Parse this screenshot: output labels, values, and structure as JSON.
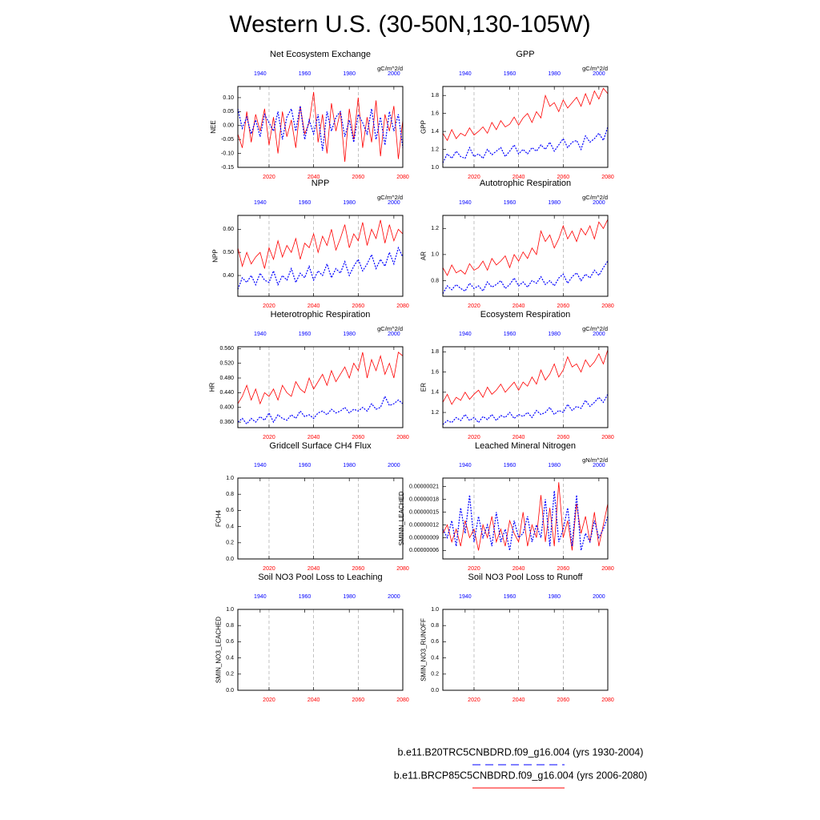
{
  "title": "Western U.S. (30-50N,130-105W)",
  "legend": [
    {
      "name": "b.e11.B20TRC5CNBDRD.f09_g16.004 (yrs 1930-2004)",
      "color": "#0000ff",
      "dash": true
    },
    {
      "name": "b.e11.BRCP85C5CNBDRD.f09_g16.004 (yrs 2006-2080)",
      "color": "#ff0000",
      "dash": false
    }
  ],
  "x": [
    2006,
    2008,
    2010,
    2012,
    2014,
    2016,
    2018,
    2020,
    2022,
    2024,
    2026,
    2028,
    2030,
    2032,
    2034,
    2036,
    2038,
    2040,
    2042,
    2044,
    2046,
    2048,
    2050,
    2052,
    2054,
    2056,
    2058,
    2060,
    2062,
    2064,
    2066,
    2068,
    2070,
    2072,
    2074,
    2076,
    2078,
    2080
  ],
  "x2": [
    1930,
    1932,
    1934,
    1936,
    1938,
    1940,
    1942,
    1944,
    1946,
    1948,
    1950,
    1952,
    1954,
    1956,
    1958,
    1960,
    1962,
    1964,
    1966,
    1968,
    1970,
    1972,
    1974,
    1976,
    1978,
    1980,
    1982,
    1984,
    1986,
    1988,
    1990,
    1992,
    1994,
    1996,
    1998,
    2000,
    2002,
    2004
  ],
  "xlim": [
    2006,
    2080
  ],
  "xticks": [
    2020,
    2040,
    2060,
    2080
  ],
  "x2lim": [
    1930,
    2004
  ],
  "x2ticks": [
    1940,
    1960,
    1980,
    2000
  ],
  "grid_x": true,
  "chart_data": [
    {
      "type": "line",
      "title": "Net Ecosystem Exchange",
      "units": "gC/m^2/d",
      "ylabel": "NEE",
      "ylim": [
        -0.15,
        0.14
      ],
      "yticks": [
        -0.15,
        {
          "value": -0.1,
          "label": "-0.10"
        },
        -0.05,
        {
          "value": 0,
          "label": "0.00"
        },
        0.05,
        {
          "value": 0.1,
          "label": "0.10"
        }
      ],
      "series": [
        {
          "color": "#ff0000",
          "values": [
            -0.03,
            -0.08,
            0.05,
            -0.06,
            0.04,
            -0.02,
            0.06,
            -0.07,
            0.03,
            -0.1,
            0.05,
            -0.04,
            0.02,
            -0.08,
            0.07,
            -0.03,
            0.01,
            0.12,
            -0.06,
            0.04,
            -0.1,
            0.08,
            -0.02,
            0.05,
            -0.13,
            0.06,
            -0.05,
            0.1,
            -0.08,
            0.03,
            -0.06,
            0.09,
            -0.11,
            0.04,
            -0.02,
            0.07,
            -0.12,
            0.02
          ]
        },
        {
          "color": "#0000ff",
          "dash": true,
          "axis": "x2",
          "values": [
            0.06,
            -0.01,
            0.03,
            -0.03,
            0.02,
            -0.04,
            0.04,
            0.01,
            -0.02,
            0.05,
            -0.05,
            0.03,
            0.06,
            -0.02,
            0.07,
            -0.05,
            0.02,
            -0.03,
            0.04,
            -0.09,
            0.05,
            -0.02,
            0.03,
            0.05,
            -0.04,
            0.02,
            -0.06,
            0.04,
            0.01,
            -0.03,
            0.06,
            -0.05,
            0.03,
            -0.07,
            0.05,
            -0.02,
            0.04,
            -0.08
          ]
        }
      ]
    },
    {
      "type": "line",
      "title": "GPP",
      "units": "gC/m^2/d",
      "ylabel": "GPP",
      "ylim": [
        1.0,
        1.9
      ],
      "yticks": [
        {
          "value": 1.0,
          "label": "1.0"
        },
        1.2,
        1.4,
        1.6,
        1.8
      ],
      "series": [
        {
          "color": "#ff0000",
          "values": [
            1.38,
            1.3,
            1.42,
            1.32,
            1.38,
            1.35,
            1.44,
            1.36,
            1.4,
            1.45,
            1.38,
            1.5,
            1.42,
            1.52,
            1.45,
            1.48,
            1.56,
            1.47,
            1.55,
            1.6,
            1.5,
            1.62,
            1.55,
            1.8,
            1.68,
            1.72,
            1.62,
            1.75,
            1.66,
            1.72,
            1.78,
            1.68,
            1.82,
            1.7,
            1.85,
            1.76,
            1.88,
            1.82
          ]
        },
        {
          "color": "#0000ff",
          "dash": true,
          "axis": "x2",
          "values": [
            1.05,
            1.15,
            1.1,
            1.18,
            1.12,
            1.1,
            1.22,
            1.12,
            1.15,
            1.1,
            1.2,
            1.14,
            1.18,
            1.22,
            1.12,
            1.18,
            1.25,
            1.15,
            1.2,
            1.15,
            1.22,
            1.18,
            1.25,
            1.2,
            1.28,
            1.18,
            1.25,
            1.32,
            1.22,
            1.28,
            1.3,
            1.2,
            1.35,
            1.28,
            1.32,
            1.38,
            1.3,
            1.45
          ]
        }
      ]
    },
    {
      "type": "line",
      "title": "NPP",
      "units": "gC/m^2/d",
      "ylabel": "NPP",
      "ylim": [
        0.31,
        0.66
      ],
      "yticks": [
        {
          "value": 0.4,
          "label": "0.40"
        },
        {
          "value": 0.5,
          "label": "0.50"
        },
        {
          "value": 0.6,
          "label": "0.60"
        }
      ],
      "series": [
        {
          "color": "#ff0000",
          "values": [
            0.52,
            0.44,
            0.5,
            0.45,
            0.48,
            0.5,
            0.43,
            0.52,
            0.47,
            0.55,
            0.48,
            0.53,
            0.5,
            0.56,
            0.47,
            0.54,
            0.52,
            0.58,
            0.5,
            0.57,
            0.53,
            0.6,
            0.51,
            0.56,
            0.62,
            0.52,
            0.58,
            0.55,
            0.63,
            0.53,
            0.6,
            0.56,
            0.64,
            0.54,
            0.62,
            0.55,
            0.6,
            0.58
          ]
        },
        {
          "color": "#0000ff",
          "dash": true,
          "axis": "x2",
          "values": [
            0.34,
            0.39,
            0.37,
            0.4,
            0.36,
            0.41,
            0.38,
            0.37,
            0.42,
            0.36,
            0.4,
            0.38,
            0.43,
            0.37,
            0.41,
            0.39,
            0.44,
            0.38,
            0.42,
            0.4,
            0.45,
            0.39,
            0.43,
            0.41,
            0.46,
            0.4,
            0.44,
            0.47,
            0.42,
            0.45,
            0.49,
            0.43,
            0.47,
            0.44,
            0.5,
            0.45,
            0.52,
            0.48
          ]
        }
      ]
    },
    {
      "type": "line",
      "title": "Autotrophic Respiration",
      "units": "gC/m^2/d",
      "ylabel": "AR",
      "ylim": [
        0.68,
        1.3
      ],
      "yticks": [
        0.8,
        {
          "value": 1.0,
          "label": "1.0"
        },
        1.2
      ],
      "series": [
        {
          "color": "#ff0000",
          "values": [
            0.9,
            0.84,
            0.92,
            0.86,
            0.88,
            0.85,
            0.93,
            0.88,
            0.9,
            0.95,
            0.88,
            0.97,
            0.92,
            0.95,
            0.99,
            0.9,
            1.0,
            0.95,
            1.02,
            0.97,
            1.05,
            1.0,
            1.18,
            1.1,
            1.15,
            1.05,
            1.12,
            1.22,
            1.12,
            1.18,
            1.1,
            1.2,
            1.15,
            1.22,
            1.12,
            1.25,
            1.2,
            1.27
          ]
        },
        {
          "color": "#0000ff",
          "dash": true,
          "axis": "x2",
          "values": [
            0.7,
            0.76,
            0.73,
            0.77,
            0.74,
            0.72,
            0.78,
            0.74,
            0.76,
            0.72,
            0.79,
            0.75,
            0.77,
            0.8,
            0.74,
            0.77,
            0.82,
            0.76,
            0.79,
            0.75,
            0.8,
            0.78,
            0.83,
            0.77,
            0.8,
            0.76,
            0.82,
            0.85,
            0.78,
            0.83,
            0.86,
            0.8,
            0.85,
            0.82,
            0.88,
            0.84,
            0.9,
            0.95
          ]
        }
      ]
    },
    {
      "type": "line",
      "title": "Heterotrophic Respiration",
      "units": "gC/m^2/d",
      "ylabel": "HR",
      "ylim": [
        0.345,
        0.565
      ],
      "yticks": [
        {
          "value": 0.36,
          "label": "0.360"
        },
        {
          "value": 0.4,
          "label": "0.400"
        },
        {
          "value": 0.44,
          "label": "0.440"
        },
        {
          "value": 0.48,
          "label": "0.480"
        },
        {
          "value": 0.52,
          "label": "0.520"
        },
        {
          "value": 0.56,
          "label": "0.560"
        }
      ],
      "series": [
        {
          "color": "#ff0000",
          "values": [
            0.41,
            0.43,
            0.46,
            0.42,
            0.45,
            0.41,
            0.44,
            0.43,
            0.45,
            0.42,
            0.46,
            0.44,
            0.43,
            0.47,
            0.45,
            0.44,
            0.48,
            0.45,
            0.47,
            0.49,
            0.46,
            0.5,
            0.47,
            0.49,
            0.51,
            0.48,
            0.52,
            0.5,
            0.55,
            0.48,
            0.53,
            0.5,
            0.54,
            0.49,
            0.52,
            0.48,
            0.55,
            0.54
          ]
        },
        {
          "color": "#0000ff",
          "dash": true,
          "axis": "x2",
          "values": [
            0.36,
            0.37,
            0.355,
            0.37,
            0.36,
            0.375,
            0.365,
            0.385,
            0.36,
            0.38,
            0.37,
            0.365,
            0.38,
            0.37,
            0.39,
            0.375,
            0.38,
            0.37,
            0.385,
            0.39,
            0.38,
            0.395,
            0.385,
            0.39,
            0.4,
            0.385,
            0.395,
            0.39,
            0.4,
            0.39,
            0.41,
            0.395,
            0.4,
            0.43,
            0.405,
            0.41,
            0.42,
            0.41
          ]
        }
      ]
    },
    {
      "type": "line",
      "title": "Ecosystem Respiration",
      "units": "gC/m^2/d",
      "ylabel": "ER",
      "ylim": [
        1.05,
        1.85
      ],
      "yticks": [
        1.2,
        1.4,
        1.6,
        1.8
      ],
      "series": [
        {
          "color": "#ff0000",
          "values": [
            1.3,
            1.38,
            1.28,
            1.35,
            1.32,
            1.4,
            1.33,
            1.38,
            1.42,
            1.35,
            1.45,
            1.38,
            1.42,
            1.48,
            1.4,
            1.45,
            1.5,
            1.42,
            1.5,
            1.46,
            1.55,
            1.48,
            1.62,
            1.52,
            1.58,
            1.68,
            1.55,
            1.62,
            1.75,
            1.65,
            1.68,
            1.6,
            1.72,
            1.65,
            1.7,
            1.78,
            1.68,
            1.82
          ]
        },
        {
          "color": "#0000ff",
          "dash": true,
          "axis": "x2",
          "values": [
            1.08,
            1.12,
            1.1,
            1.15,
            1.12,
            1.18,
            1.12,
            1.15,
            1.1,
            1.16,
            1.13,
            1.18,
            1.12,
            1.17,
            1.15,
            1.2,
            1.14,
            1.18,
            1.16,
            1.2,
            1.15,
            1.22,
            1.18,
            1.2,
            1.25,
            1.18,
            1.22,
            1.2,
            1.28,
            1.22,
            1.26,
            1.24,
            1.32,
            1.26,
            1.3,
            1.35,
            1.3,
            1.38
          ]
        }
      ]
    },
    {
      "type": "line",
      "title": "Gridcell Surface CH4 Flux",
      "ylabel": "FCH4",
      "ylim": [
        0,
        1
      ],
      "yticks": [
        {
          "value": 0,
          "label": "0.0"
        },
        0.2,
        0.4,
        0.6,
        0.8,
        {
          "value": 1,
          "label": "1.0"
        }
      ],
      "series": []
    },
    {
      "type": "line",
      "title": "Leached Mineral Nitrogen",
      "units": "gN/m^2/d",
      "ylabel": "SMINN_LEACHED",
      "ylim": [
        4e-08,
        2.3e-07
      ],
      "yticks": [
        {
          "value": 6e-08,
          "label": "0.00000006"
        },
        {
          "value": 9e-08,
          "label": "0.00000009"
        },
        {
          "value": 1.2e-07,
          "label": "0.00000012"
        },
        {
          "value": 1.5e-07,
          "label": "0.00000015"
        },
        {
          "value": 1.8e-07,
          "label": "0.00000018"
        },
        {
          "value": 2.1e-07,
          "label": "0.00000021"
        }
      ],
      "series": [
        {
          "color": "#ff0000",
          "values": [
            1e-07,
            1.2e-07,
            8e-08,
            1.1e-07,
            7e-08,
            1.3e-07,
            9e-08,
            1.1e-07,
            6e-08,
            1.2e-07,
            9e-08,
            1.4e-07,
            8e-08,
            1.1e-07,
            7e-08,
            1.3e-07,
            1e-07,
            8e-08,
            1.5e-07,
            7e-08,
            1.2e-07,
            9e-08,
            1.9e-07,
            8e-08,
            1.6e-07,
            7e-08,
            2.2e-07,
            9e-08,
            1.3e-07,
            6e-08,
            1.7e-07,
            1e-07,
            1.4e-07,
            8e-08,
            1.5e-07,
            7e-08,
            1.2e-07,
            1.7e-07
          ]
        },
        {
          "color": "#0000ff",
          "dash": true,
          "axis": "x2",
          "values": [
            1.1e-07,
            9e-08,
            1.3e-07,
            7e-08,
            1.6e-07,
            1e-07,
            1.9e-07,
            8e-08,
            1.4e-07,
            9e-08,
            1.2e-07,
            7e-08,
            1.5e-07,
            8e-08,
            1.1e-07,
            6e-08,
            1.3e-07,
            9e-08,
            1e-07,
            1.4e-07,
            8e-08,
            1.2e-07,
            9e-08,
            1.8e-07,
            7e-08,
            2e-07,
            8e-08,
            1.1e-07,
            1.6e-07,
            7e-08,
            1.9e-07,
            6e-08,
            1e-07,
            8e-08,
            1.3e-07,
            9e-08,
            1.1e-07,
            1.4e-07
          ]
        }
      ]
    },
    {
      "type": "line",
      "title": "Soil NO3 Pool Loss to Leaching",
      "ylabel": "SMIN_NO3_LEACHED",
      "ylim": [
        0,
        1
      ],
      "yticks": [
        {
          "value": 0,
          "label": "0.0"
        },
        0.2,
        0.4,
        0.6,
        0.8,
        {
          "value": 1,
          "label": "1.0"
        }
      ],
      "series": []
    },
    {
      "type": "line",
      "title": "Soil NO3 Pool Loss to Runoff",
      "ylabel": "SMIN_NO3_RUNOFF",
      "ylim": [
        0,
        1
      ],
      "yticks": [
        {
          "value": 0,
          "label": "0.0"
        },
        0.2,
        0.4,
        0.6,
        0.8,
        {
          "value": 1,
          "label": "1.0"
        }
      ],
      "series": []
    }
  ]
}
